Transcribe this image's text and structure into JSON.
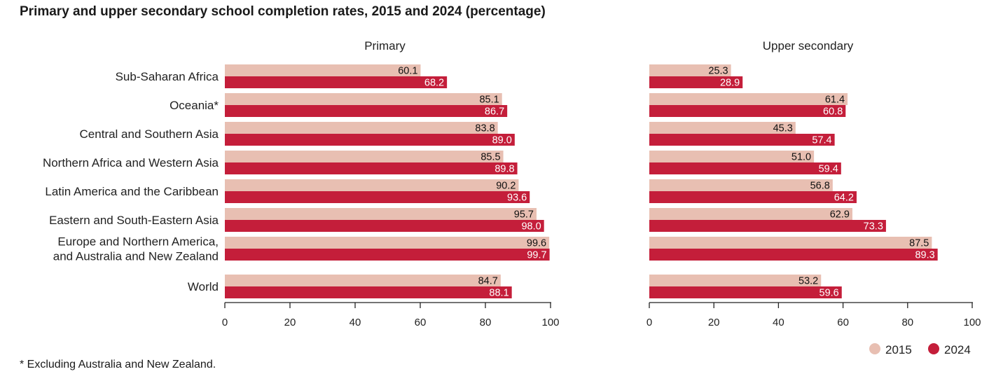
{
  "title": "Primary and upper secondary school completion rates, 2015 and 2024 (percentage)",
  "footnote": "* Excluding Australia and New Zealand.",
  "colors": {
    "s2015": "#e8bfb2",
    "s2024": "#c41e3a",
    "axis": "#222222"
  },
  "chart_data": [
    {
      "type": "bar",
      "orientation": "horizontal",
      "title": "Primary",
      "categories": [
        [
          "Sub-Saharan Africa"
        ],
        [
          "Oceania*"
        ],
        [
          "Central and Southern Asia"
        ],
        [
          "Northern Africa and Western Asia"
        ],
        [
          "Latin America and the Caribbean"
        ],
        [
          "Eastern and South-Eastern Asia"
        ],
        [
          "Europe and Northern America,",
          "and Australia and New Zealand"
        ],
        [
          "World"
        ]
      ],
      "series": [
        {
          "name": "2015",
          "values": [
            "60.1",
            "85.1",
            "83.8",
            "85.5",
            "90.2",
            "95.7",
            "99.6",
            "84.7"
          ]
        },
        {
          "name": "2024",
          "values": [
            "68.2",
            "86.7",
            "89.0",
            "89.8",
            "93.6",
            "98.0",
            "99.7",
            "88.1"
          ]
        }
      ],
      "xlim": [
        0,
        100
      ],
      "xticks": [
        "0",
        "20",
        "40",
        "60",
        "80",
        "100"
      ]
    },
    {
      "type": "bar",
      "orientation": "horizontal",
      "title": "Upper secondary",
      "categories": [
        [
          "Sub-Saharan Africa"
        ],
        [
          "Oceania*"
        ],
        [
          "Central and Southern Asia"
        ],
        [
          "Northern Africa and Western Asia"
        ],
        [
          "Latin America and the Caribbean"
        ],
        [
          "Eastern and South-Eastern Asia"
        ],
        [
          "Europe and Northern America,",
          "and Australia and New Zealand"
        ],
        [
          "World"
        ]
      ],
      "series": [
        {
          "name": "2015",
          "values": [
            "25.3",
            "61.4",
            "45.3",
            "51.0",
            "56.8",
            "62.9",
            "87.5",
            "53.2"
          ]
        },
        {
          "name": "2024",
          "values": [
            "28.9",
            "60.8",
            "57.4",
            "59.4",
            "64.2",
            "73.3",
            "89.3",
            "59.6"
          ]
        }
      ],
      "xlim": [
        0,
        100
      ],
      "xticks": [
        "0",
        "20",
        "40",
        "60",
        "80",
        "100"
      ]
    }
  ],
  "legend": {
    "placement": "bottom-right",
    "items": [
      "2015",
      "2024"
    ]
  }
}
